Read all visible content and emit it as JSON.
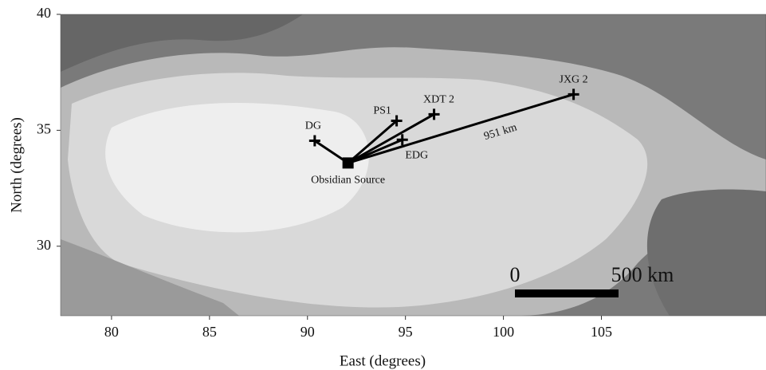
{
  "chart_data": {
    "type": "map",
    "xlabel": "East (degrees)",
    "ylabel": "North (degrees)",
    "xlim": [
      77.4,
      113.4
    ],
    "ylim": [
      27,
      40
    ],
    "xticks": [
      80,
      85,
      90,
      95,
      100,
      105
    ],
    "yticks": [
      30,
      35,
      40
    ],
    "source": {
      "name": "Obsidian Source",
      "x": 92.07,
      "y": 33.59
    },
    "sites": [
      {
        "name": "DG",
        "x": 90.37,
        "y": 34.55
      },
      {
        "name": "PS1",
        "x": 94.55,
        "y": 35.41
      },
      {
        "name": "XDT 2",
        "x": 96.46,
        "y": 35.69
      },
      {
        "name": "EDG",
        "x": 94.84,
        "y": 34.59
      },
      {
        "name": "JXG 2",
        "x": 103.58,
        "y": 36.55
      }
    ],
    "route_label": "951 km",
    "scale_bar": {
      "labels": [
        "0",
        "500 km"
      ]
    }
  }
}
